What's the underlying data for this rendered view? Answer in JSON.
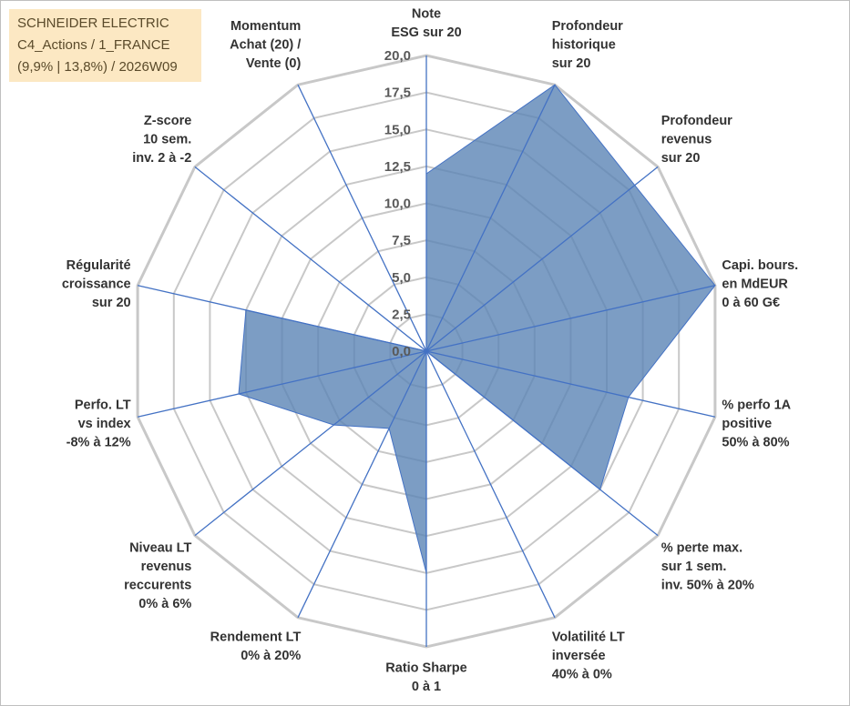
{
  "header": {
    "company": "SCHNEIDER ELECTRIC",
    "portfolio": "C4_Actions / 1_FRANCE",
    "details": "(9,9% | 13,8%) / 2026W09"
  },
  "colors": {
    "fill": "#5b85b5",
    "fill_opacity": 0.8,
    "series_line": "#4472c4",
    "grid": "#c8c8c8",
    "spoke": "#4472c4",
    "info_box_bg": "#fce8c3"
  },
  "chart_data": {
    "type": "radar",
    "rmin": 0,
    "rmax": 20,
    "tick_labels": [
      "0,0",
      "2,5",
      "5,0",
      "7,5",
      "10,0",
      "12,5",
      "15,0",
      "17,5",
      "20,0"
    ],
    "axes": [
      [
        "Note",
        "ESG sur 20"
      ],
      [
        "Profondeur",
        "historique",
        "sur 20"
      ],
      [
        "Profondeur",
        "revenus",
        "sur 20"
      ],
      [
        "Capi. bours.",
        "en MdEUR",
        "0 à 60 G€"
      ],
      [
        "% perfo 1A",
        "positive",
        "50% à 80%"
      ],
      [
        "% perte max.",
        "sur 1 sem.",
        "inv. 50% à 20%"
      ],
      [
        "Volatilité LT",
        "inversée",
        "40% à 0%"
      ],
      [
        "Ratio Sharpe",
        "0 à 1"
      ],
      [
        "Rendement LT",
        "0% à 20%"
      ],
      [
        "Niveau LT",
        "revenus",
        "reccurents",
        "0% à 6%"
      ],
      [
        "Perfo. LT",
        "vs index",
        "-8% à 12%"
      ],
      [
        "Régularité",
        "croissance",
        "sur 20"
      ],
      [
        "Z-score",
        "10 sem.",
        "inv. 2 à -2"
      ],
      [
        "Momentum",
        "Achat (20) /",
        "Vente (0)"
      ]
    ],
    "values": [
      12.0,
      20.0,
      18.0,
      20.0,
      14.0,
      15.0,
      0.0,
      15.0,
      5.8,
      8.0,
      13.0,
      12.5,
      0.0,
      0.0
    ]
  }
}
